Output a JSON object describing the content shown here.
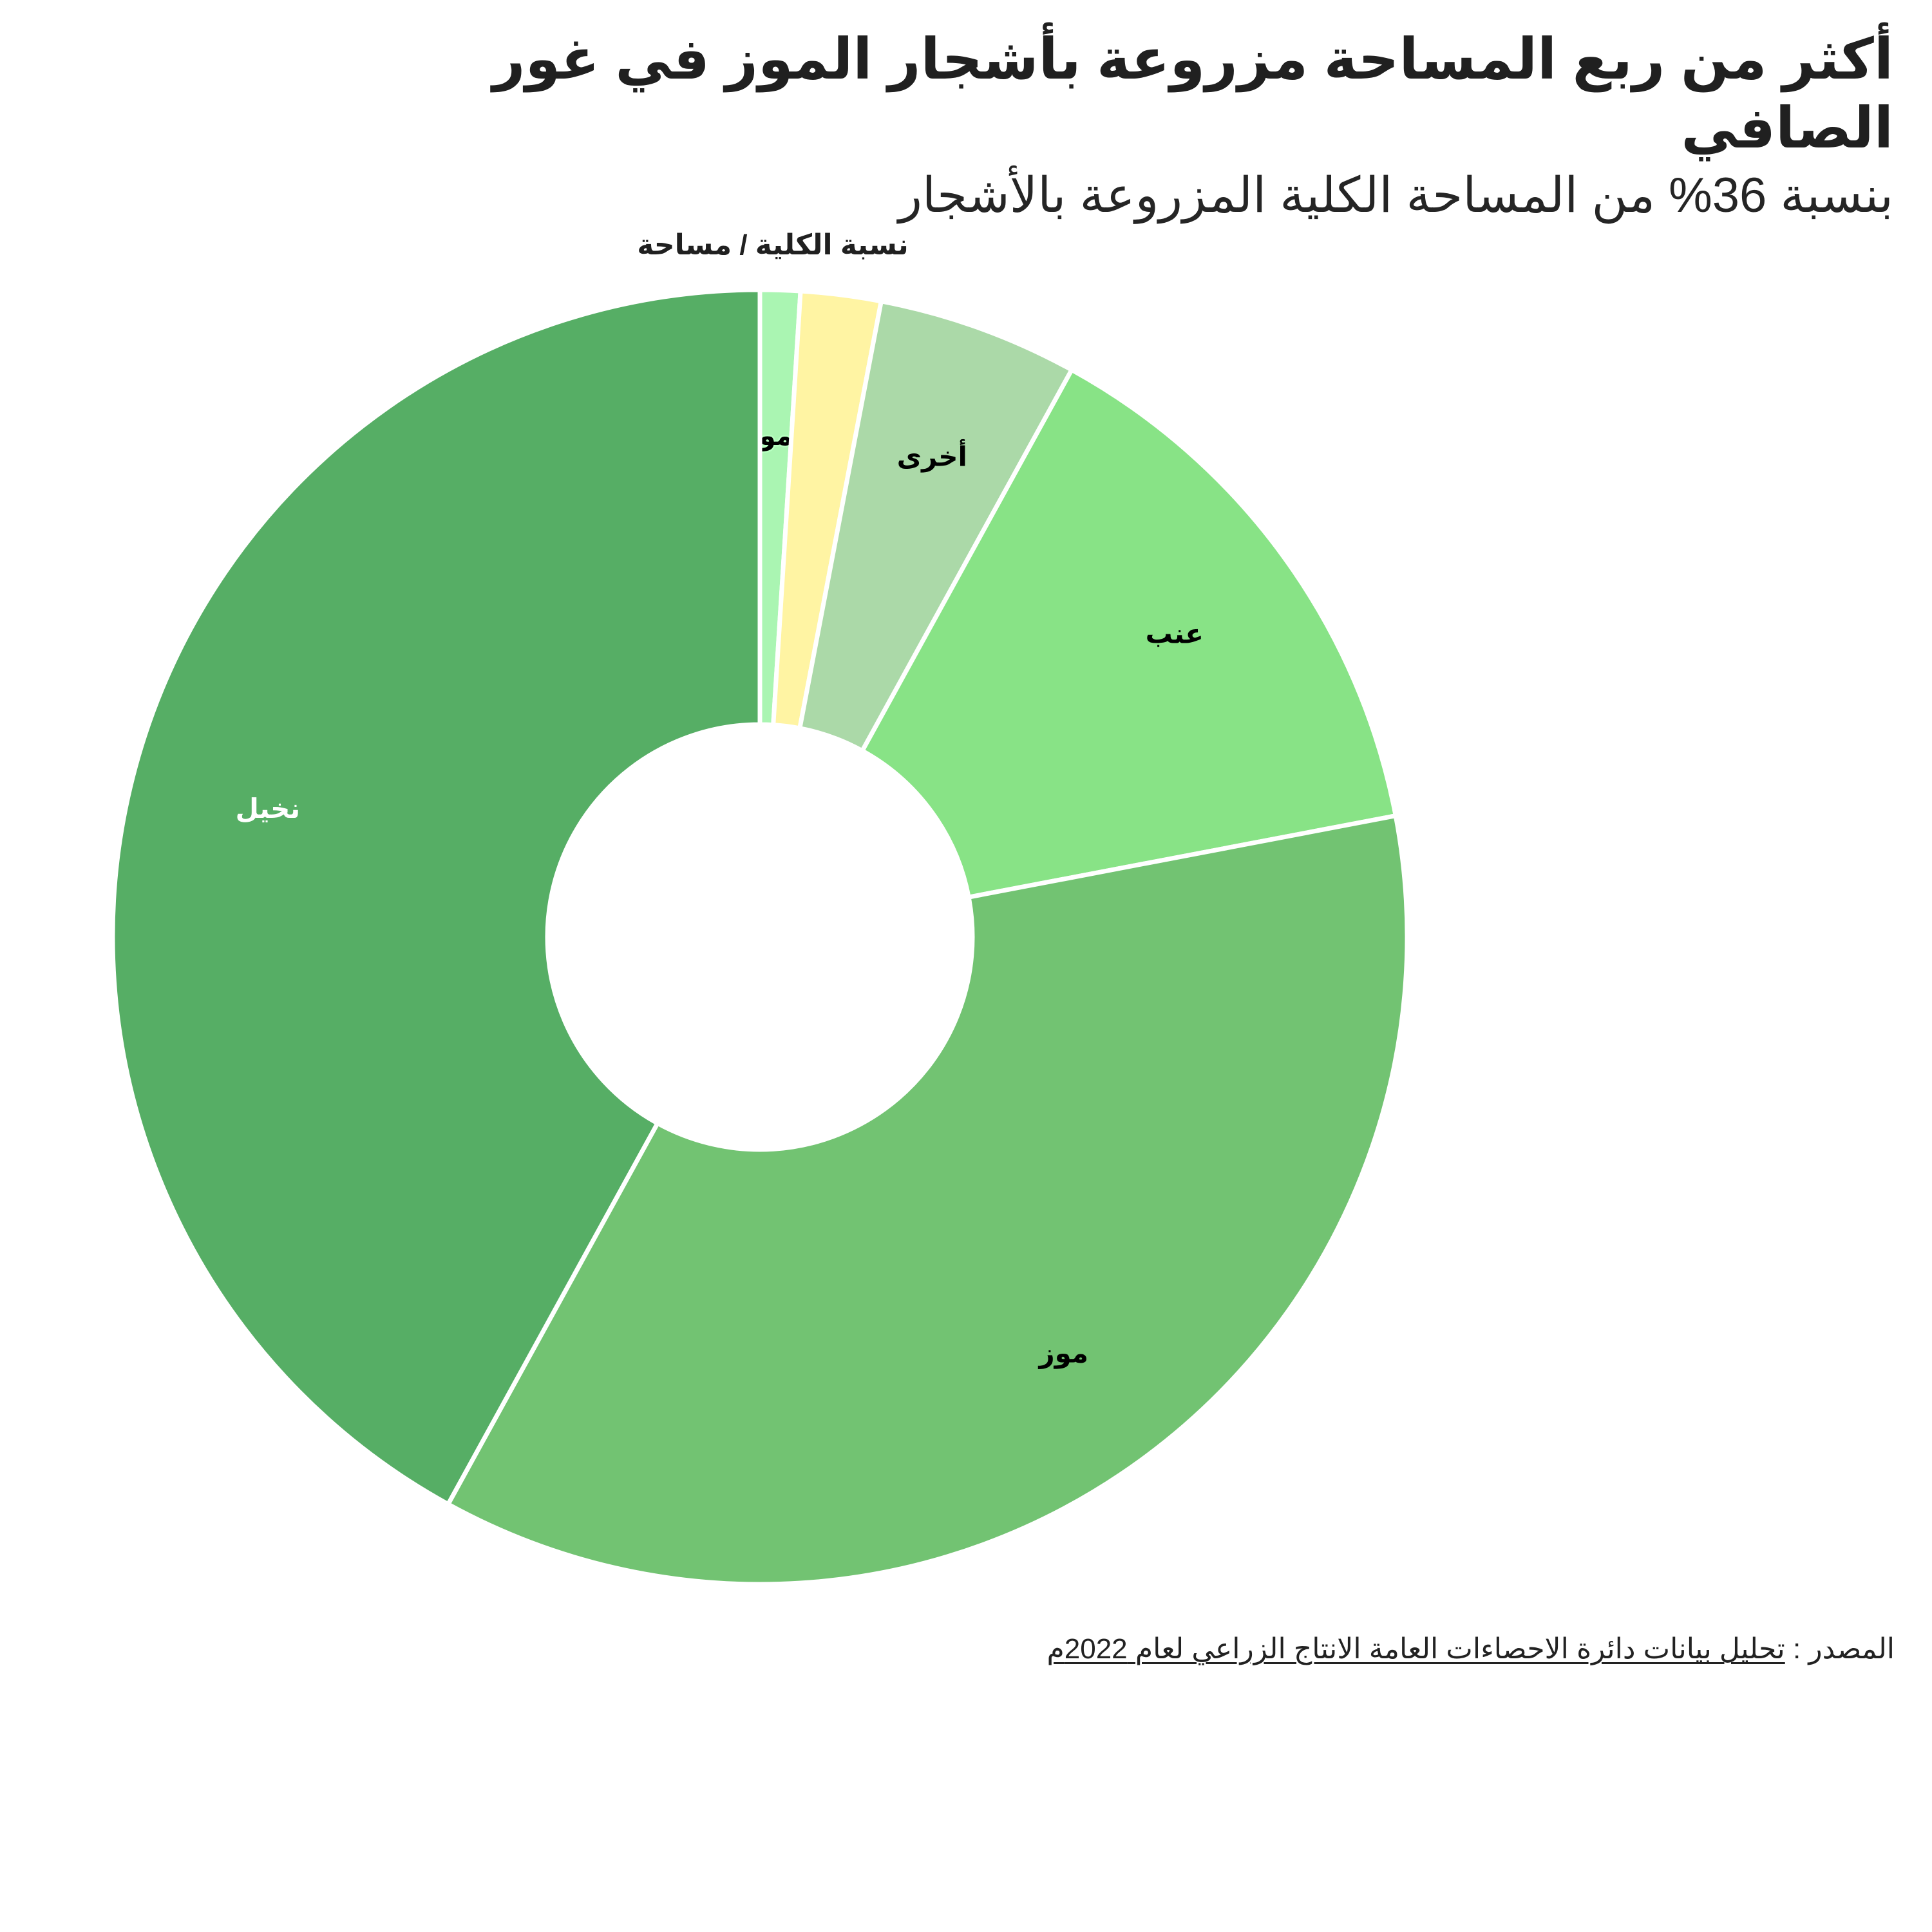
{
  "header": {
    "title": "أكثر من ربع المساحة مزروعة بأشجار الموز في غور الصافي",
    "subtitle": "بنسبة 36% من المساحة الكلية المزروعة بالأشجار"
  },
  "chart_data": {
    "type": "pie",
    "donut": true,
    "title": "أكثر من ربع المساحة مزروعة بأشجار الموز في غور الصافي",
    "subtitle": "بنسبة 36% من المساحة الكلية المزروعة بالأشجار",
    "measure_label": "نسبة الكلية / مساحة",
    "categories": [
      "ليمون",
      "",
      "أخرى",
      "عنب",
      "موز",
      "نخيل"
    ],
    "values": [
      1.0,
      2.0,
      5.0,
      14.0,
      36.0,
      42.0
    ],
    "unit": "%",
    "label_visibility": [
      true,
      false,
      true,
      true,
      true,
      true
    ],
    "colors": [
      "#aaf5b2",
      "#fff4a3",
      "#abd9a8",
      "#88e386",
      "#72c372",
      "#56ae65"
    ],
    "label_colors": [
      "#000000",
      "#000000",
      "#000000",
      "#000000",
      "#000000",
      "#ffffff"
    ],
    "slice_order": "clockwise-from-top",
    "legend": "none"
  },
  "source": {
    "label": "المصدر :",
    "text": "تحليل بيانات دائرة الاحصاءات العامة الانتاج الزراعي لعام 2022م"
  }
}
